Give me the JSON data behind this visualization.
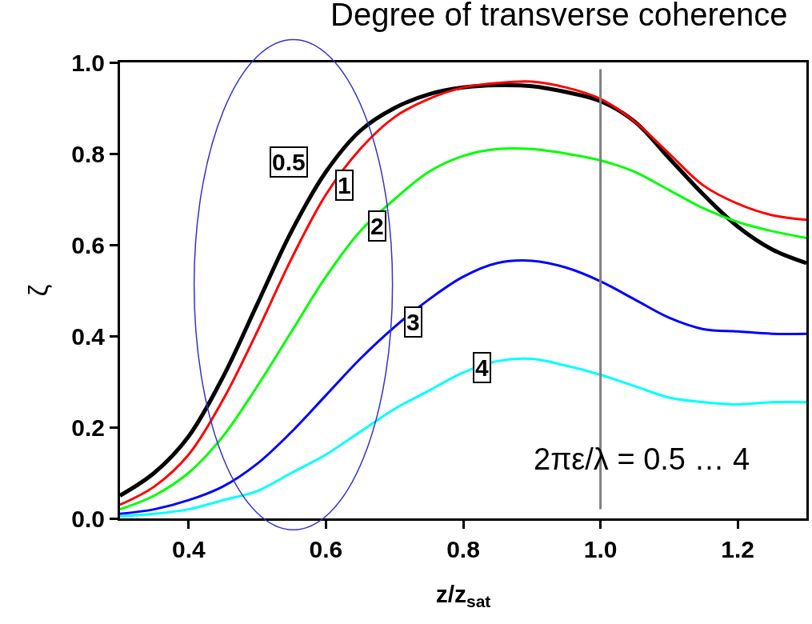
{
  "chart_data": {
    "type": "line",
    "title": "Degree of transverse coherence",
    "xlabel": "z/z$_{sat}$",
    "ylabel": "ζ",
    "x": [
      0.3,
      0.35,
      0.4,
      0.45,
      0.5,
      0.55,
      0.6,
      0.65,
      0.7,
      0.75,
      0.8,
      0.85,
      0.9,
      0.95,
      1.0,
      1.05,
      1.1,
      1.15,
      1.2,
      1.25,
      1.3
    ],
    "series": [
      {
        "name": "0.5",
        "color": "#000000",
        "values": [
          0.05,
          0.1,
          0.18,
          0.31,
          0.47,
          0.63,
          0.76,
          0.85,
          0.9,
          0.93,
          0.945,
          0.95,
          0.948,
          0.935,
          0.915,
          0.87,
          0.79,
          0.71,
          0.64,
          0.59,
          0.56
        ]
      },
      {
        "name": "1",
        "color": "#ff0000",
        "values": [
          0.03,
          0.07,
          0.14,
          0.26,
          0.41,
          0.57,
          0.71,
          0.81,
          0.88,
          0.92,
          0.945,
          0.955,
          0.958,
          0.945,
          0.92,
          0.87,
          0.8,
          0.73,
          0.69,
          0.665,
          0.655
        ]
      },
      {
        "name": "2",
        "color": "#00ff00",
        "values": [
          0.02,
          0.05,
          0.1,
          0.18,
          0.29,
          0.41,
          0.53,
          0.63,
          0.7,
          0.76,
          0.795,
          0.81,
          0.81,
          0.8,
          0.785,
          0.76,
          0.72,
          0.68,
          0.65,
          0.63,
          0.615
        ]
      },
      {
        "name": "3",
        "color": "#0000ff",
        "values": [
          0.01,
          0.02,
          0.04,
          0.07,
          0.12,
          0.19,
          0.27,
          0.35,
          0.42,
          0.48,
          0.53,
          0.56,
          0.565,
          0.55,
          0.52,
          0.48,
          0.44,
          0.415,
          0.41,
          0.405,
          0.405
        ]
      },
      {
        "name": "4",
        "color": "#00ffff",
        "values": [
          0.005,
          0.01,
          0.02,
          0.04,
          0.06,
          0.1,
          0.14,
          0.19,
          0.24,
          0.28,
          0.32,
          0.345,
          0.35,
          0.335,
          0.315,
          0.29,
          0.265,
          0.255,
          0.25,
          0.255,
          0.255
        ]
      }
    ],
    "xlim": [
      0.3,
      1.3
    ],
    "ylim": [
      0,
      1
    ],
    "xticks": [
      0.4,
      0.6,
      0.8,
      {
        "value": 1.0,
        "label": "1.0"
      },
      1.2
    ],
    "yticks": [
      {
        "value": 0,
        "label": "0.0"
      },
      0.2,
      0.4,
      0.6,
      0.8,
      {
        "value": 1.0,
        "label": "1.0"
      }
    ],
    "ref_lines": [
      {
        "axis": "x",
        "value": 1.0,
        "color": "#808080"
      }
    ],
    "annotations": [
      "2πε/λ = 0.5 … 4"
    ],
    "legend": false,
    "marker": "none",
    "line_style": "solid"
  }
}
